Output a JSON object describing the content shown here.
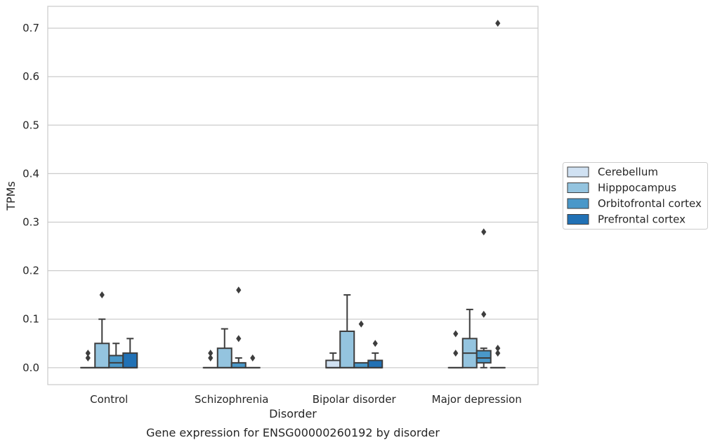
{
  "chart_data": {
    "type": "box",
    "title": "",
    "caption": "Gene expression for ENSG00000260192 by disorder",
    "xlabel": "Disorder",
    "ylabel": "TPMs",
    "ylim": [
      -0.035,
      0.745
    ],
    "yticks": [
      "0.0",
      "0.1",
      "0.2",
      "0.3",
      "0.4",
      "0.5",
      "0.6",
      "0.7"
    ],
    "grid": true,
    "legend_position": "right, outside plot",
    "categories": [
      "Control",
      "Schizophrenia",
      "Bipolar disorder",
      "Major depression"
    ],
    "series": [
      {
        "name": "Cerebellum",
        "color": "#d0e1f2",
        "boxes": [
          {
            "q1": 0.0,
            "median": 0.0,
            "q3": 0.0,
            "whisker_low": 0.0,
            "whisker_high": 0.0,
            "outliers": [
              0.02,
              0.03
            ]
          },
          {
            "q1": 0.0,
            "median": 0.0,
            "q3": 0.0,
            "whisker_low": 0.0,
            "whisker_high": 0.0,
            "outliers": [
              0.02,
              0.03
            ]
          },
          {
            "q1": 0.0,
            "median": 0.0,
            "q3": 0.015,
            "whisker_low": 0.0,
            "whisker_high": 0.03,
            "outliers": []
          },
          {
            "q1": 0.0,
            "median": 0.0,
            "q3": 0.0,
            "whisker_low": 0.0,
            "whisker_high": 0.0,
            "outliers": [
              0.03,
              0.07
            ]
          }
        ]
      },
      {
        "name": "Hipppocampus",
        "color": "#94c4df",
        "boxes": [
          {
            "q1": 0.0,
            "median": 0.0,
            "q3": 0.05,
            "whisker_low": 0.0,
            "whisker_high": 0.1,
            "outliers": [
              0.15
            ]
          },
          {
            "q1": 0.0,
            "median": 0.0,
            "q3": 0.04,
            "whisker_low": 0.0,
            "whisker_high": 0.08,
            "outliers": []
          },
          {
            "q1": 0.0,
            "median": 0.0,
            "q3": 0.075,
            "whisker_low": 0.0,
            "whisker_high": 0.15,
            "outliers": []
          },
          {
            "q1": 0.0,
            "median": 0.03,
            "q3": 0.06,
            "whisker_low": 0.0,
            "whisker_high": 0.12,
            "outliers": []
          }
        ]
      },
      {
        "name": "Orbitofrontal cortex",
        "color": "#4a98c9",
        "boxes": [
          {
            "q1": 0.0,
            "median": 0.01,
            "q3": 0.025,
            "whisker_low": 0.0,
            "whisker_high": 0.05,
            "outliers": []
          },
          {
            "q1": 0.0,
            "median": 0.0,
            "q3": 0.01,
            "whisker_low": 0.0,
            "whisker_high": 0.02,
            "outliers": [
              0.06,
              0.16
            ]
          },
          {
            "q1": 0.0,
            "median": 0.0,
            "q3": 0.01,
            "whisker_low": 0.0,
            "whisker_high": 0.01,
            "outliers": [
              0.09
            ]
          },
          {
            "q1": 0.01,
            "median": 0.02,
            "q3": 0.035,
            "whisker_low": 0.0,
            "whisker_high": 0.04,
            "outliers": [
              0.11,
              0.28
            ]
          }
        ]
      },
      {
        "name": "Prefrontal cortex",
        "color": "#2171b5",
        "boxes": [
          {
            "q1": 0.0,
            "median": 0.0,
            "q3": 0.03,
            "whisker_low": 0.0,
            "whisker_high": 0.06,
            "outliers": []
          },
          {
            "q1": 0.0,
            "median": 0.0,
            "q3": 0.0,
            "whisker_low": 0.0,
            "whisker_high": 0.0,
            "outliers": [
              0.02
            ]
          },
          {
            "q1": 0.0,
            "median": 0.0,
            "q3": 0.015,
            "whisker_low": 0.0,
            "whisker_high": 0.03,
            "outliers": [
              0.05
            ]
          },
          {
            "q1": 0.0,
            "median": 0.0,
            "q3": 0.0,
            "whisker_low": 0.0,
            "whisker_high": 0.0,
            "outliers": [
              0.03,
              0.04,
              0.71
            ]
          }
        ]
      }
    ]
  }
}
